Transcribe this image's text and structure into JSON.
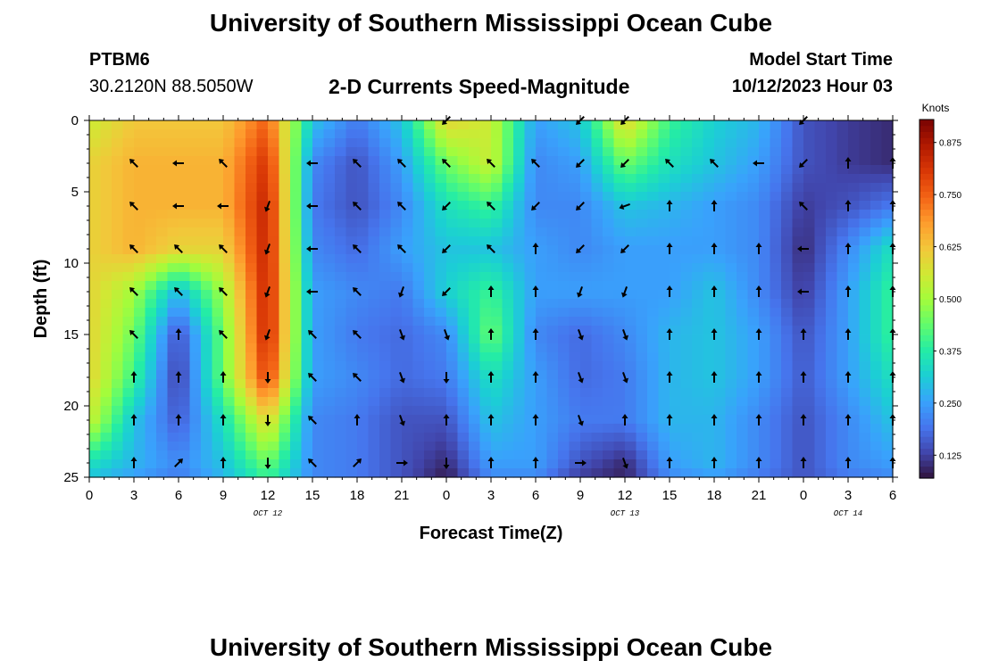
{
  "page": {
    "title": "University of Southern Mississippi Ocean Cube",
    "station_id": "PTBM6",
    "coordinates": "30.2120N  88.5050W",
    "subtitle": "2-D Currents Speed-Magnitude",
    "model_start_label": "Model Start Time",
    "model_start_value": "10/12/2023 Hour 03",
    "footer_title": "University of Southern Mississippi Ocean Cube"
  },
  "chart_data": {
    "type": "heatmap",
    "xlabel": "Forecast Time(Z)",
    "ylabel": "Depth (ft)",
    "x_ticks": [
      "0",
      "3",
      "6",
      "9",
      "12",
      "15",
      "18",
      "21",
      "0",
      "3",
      "6",
      "9",
      "12",
      "15",
      "18",
      "21",
      "0",
      "3",
      "6"
    ],
    "x_ticks_hours": [
      0,
      3,
      6,
      9,
      12,
      15,
      18,
      21,
      24,
      27,
      30,
      33,
      36,
      39,
      42,
      45,
      48,
      51,
      54
    ],
    "date_labels": [
      {
        "text": "OCT 12",
        "hour": 12
      },
      {
        "text": "OCT 13",
        "hour": 36
      },
      {
        "text": "OCT 14",
        "hour": 51
      }
    ],
    "y_ticks": [
      0,
      5,
      10,
      15,
      20,
      25
    ],
    "xlim": [
      0,
      54
    ],
    "ylim": [
      0,
      25
    ],
    "colorbar": {
      "label": "Knots",
      "ticks": [
        "0.875",
        "0.750",
        "0.625",
        "0.500",
        "0.375",
        "0.250",
        "0.125"
      ],
      "tick_values": [
        0.875,
        0.75,
        0.625,
        0.5,
        0.375,
        0.25,
        0.125
      ],
      "range": [
        0.07,
        0.93
      ],
      "colors": [
        "#30123b",
        "#4145ab",
        "#4675ed",
        "#39a2fc",
        "#1bcfd4",
        "#24eca6",
        "#61fc6c",
        "#a4fc3b",
        "#d1e834",
        "#f3c63a",
        "#fe9b2d",
        "#f36315",
        "#d93806",
        "#b11901",
        "#7a0402"
      ]
    },
    "depth_levels": [
      0,
      3,
      6,
      9,
      12,
      15,
      18,
      21,
      24,
      25
    ],
    "hours": [
      0,
      3,
      6,
      9,
      12,
      15,
      18,
      21,
      24,
      27,
      30,
      33,
      36,
      39,
      42,
      45,
      48,
      51,
      54
    ],
    "speed_knots": [
      [
        0.55,
        0.62,
        0.62,
        0.62,
        0.75,
        0.3,
        0.2,
        0.3,
        0.6,
        0.55,
        0.25,
        0.3,
        0.6,
        0.4,
        0.32,
        0.28,
        0.15,
        0.12,
        0.1
      ],
      [
        0.6,
        0.65,
        0.65,
        0.65,
        0.82,
        0.22,
        0.15,
        0.25,
        0.45,
        0.55,
        0.22,
        0.25,
        0.45,
        0.35,
        0.3,
        0.25,
        0.15,
        0.12,
        0.1
      ],
      [
        0.6,
        0.65,
        0.65,
        0.65,
        0.85,
        0.2,
        0.15,
        0.22,
        0.35,
        0.4,
        0.22,
        0.22,
        0.3,
        0.28,
        0.25,
        0.22,
        0.12,
        0.15,
        0.2
      ],
      [
        0.6,
        0.65,
        0.6,
        0.6,
        0.85,
        0.22,
        0.18,
        0.25,
        0.3,
        0.3,
        0.25,
        0.22,
        0.25,
        0.25,
        0.25,
        0.22,
        0.1,
        0.22,
        0.35
      ],
      [
        0.6,
        0.5,
        0.28,
        0.5,
        0.85,
        0.25,
        0.22,
        0.2,
        0.32,
        0.4,
        0.25,
        0.25,
        0.25,
        0.25,
        0.3,
        0.22,
        0.12,
        0.25,
        0.4
      ],
      [
        0.6,
        0.45,
        0.14,
        0.45,
        0.85,
        0.25,
        0.2,
        0.18,
        0.22,
        0.45,
        0.22,
        0.18,
        0.22,
        0.28,
        0.3,
        0.25,
        0.15,
        0.25,
        0.4
      ],
      [
        0.6,
        0.4,
        0.12,
        0.45,
        0.8,
        0.25,
        0.22,
        0.18,
        0.2,
        0.35,
        0.25,
        0.18,
        0.2,
        0.28,
        0.3,
        0.25,
        0.16,
        0.25,
        0.35
      ],
      [
        0.55,
        0.3,
        0.16,
        0.35,
        0.6,
        0.22,
        0.2,
        0.15,
        0.15,
        0.3,
        0.25,
        0.2,
        0.2,
        0.28,
        0.28,
        0.22,
        0.15,
        0.22,
        0.3
      ],
      [
        0.35,
        0.28,
        0.22,
        0.3,
        0.45,
        0.22,
        0.2,
        0.15,
        0.1,
        0.25,
        0.25,
        0.15,
        0.1,
        0.25,
        0.28,
        0.22,
        0.15,
        0.22,
        0.25
      ],
      [
        0.3,
        0.25,
        0.2,
        0.28,
        0.4,
        0.22,
        0.2,
        0.15,
        0.08,
        0.22,
        0.22,
        0.12,
        0.09,
        0.22,
        0.25,
        0.2,
        0.15,
        0.2,
        0.22
      ]
    ],
    "arrow_depths": [
      0,
      3,
      6,
      9,
      12,
      15,
      18,
      21,
      24
    ],
    "arrow_hours": [
      0,
      3,
      6,
      9,
      12,
      15,
      18,
      21,
      24,
      27,
      30,
      33,
      36,
      39,
      42,
      45,
      48,
      51,
      54
    ],
    "arrow_direction_deg": [
      [
        null,
        null,
        null,
        null,
        null,
        null,
        null,
        null,
        225,
        null,
        null,
        225,
        225,
        null,
        null,
        null,
        225,
        null,
        null
      ],
      [
        null,
        315,
        270,
        315,
        null,
        270,
        315,
        315,
        315,
        315,
        315,
        225,
        225,
        315,
        315,
        270,
        225,
        0,
        0
      ],
      [
        null,
        315,
        270,
        270,
        200,
        270,
        315,
        315,
        225,
        315,
        225,
        225,
        250,
        0,
        0,
        null,
        315,
        0,
        0
      ],
      [
        null,
        315,
        315,
        315,
        200,
        270,
        315,
        315,
        225,
        315,
        0,
        225,
        225,
        0,
        0,
        0,
        270,
        0,
        0
      ],
      [
        null,
        315,
        315,
        315,
        200,
        270,
        315,
        200,
        225,
        0,
        0,
        200,
        200,
        0,
        0,
        0,
        270,
        0,
        0
      ],
      [
        null,
        315,
        0,
        315,
        200,
        315,
        315,
        160,
        160,
        0,
        0,
        160,
        160,
        0,
        0,
        0,
        0,
        0,
        0
      ],
      [
        null,
        0,
        0,
        0,
        180,
        315,
        315,
        160,
        180,
        0,
        0,
        160,
        160,
        0,
        0,
        0,
        0,
        0,
        0
      ],
      [
        null,
        0,
        0,
        0,
        180,
        315,
        0,
        160,
        0,
        0,
        0,
        160,
        0,
        0,
        0,
        0,
        0,
        0,
        0
      ],
      [
        null,
        0,
        45,
        0,
        180,
        315,
        45,
        90,
        180,
        0,
        0,
        90,
        160,
        0,
        0,
        0,
        0,
        0,
        0
      ]
    ]
  }
}
